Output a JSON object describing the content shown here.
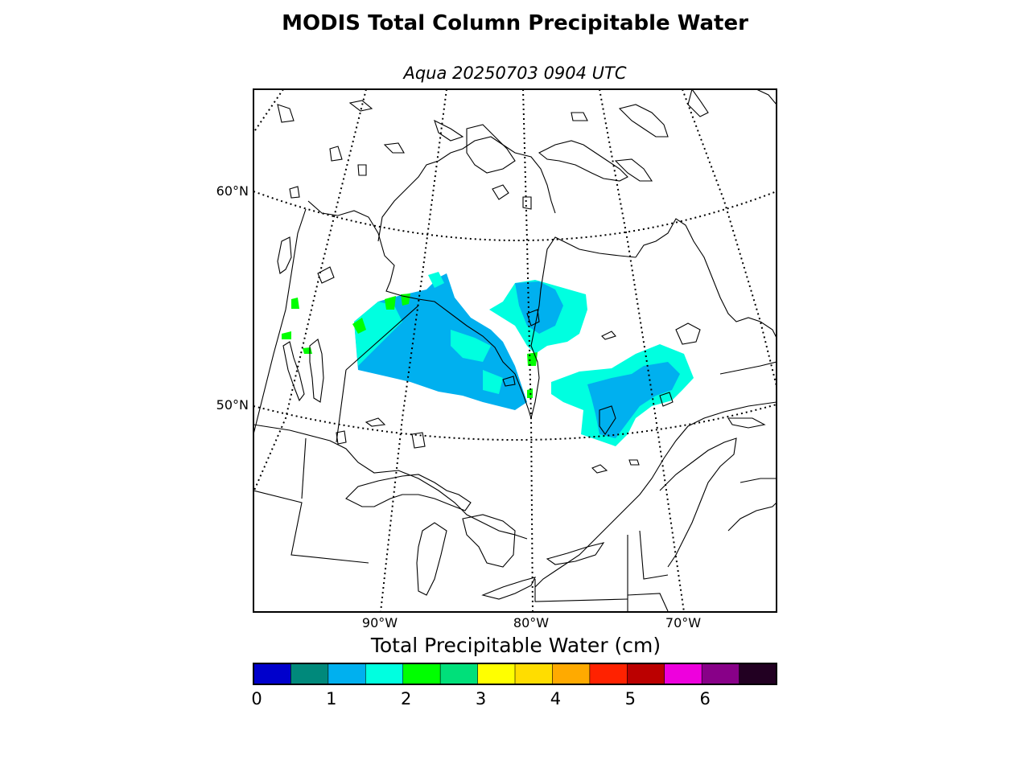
{
  "title": "MODIS Total Column Precipitable Water",
  "subtitle": "Aqua 20250703 0904 UTC",
  "map": {
    "lat_labels": [
      "60°N",
      "50°N"
    ],
    "lon_labels": [
      "90°W",
      "80°W",
      "70°W"
    ],
    "colors": {
      "coastline": "#000000",
      "gridline": "#000000",
      "background": "#ffffff"
    }
  },
  "colorbar": {
    "label": "Total Precipitable Water (cm)",
    "tick_labels": [
      "0",
      "1",
      "2",
      "3",
      "4",
      "5",
      "6"
    ],
    "colors": [
      "#0000cc",
      "#00897b",
      "#00b0ef",
      "#00ffe0",
      "#00ff00",
      "#00e07a",
      "#ffff00",
      "#ffdd00",
      "#ffaa00",
      "#ff2200",
      "#bb0000",
      "#ee00dd",
      "#880088",
      "#220022"
    ]
  }
}
